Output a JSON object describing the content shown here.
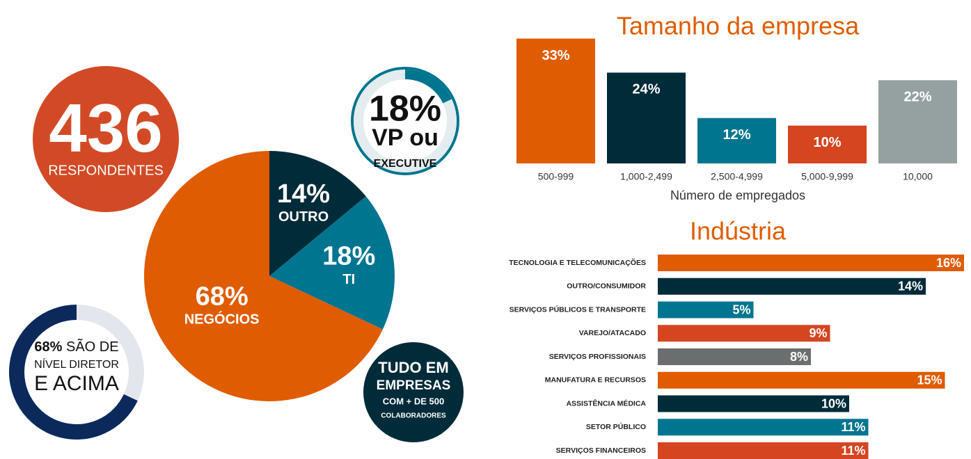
{
  "respondents": {
    "value": 436,
    "label": "RESPONDENTES"
  },
  "note": [
    "TUDO EM",
    "EMPRESAS",
    "COM + DE 500",
    "COLABORADORES"
  ],
  "chart_data": [
    {
      "type": "pie",
      "categories": [
        "OUTRO",
        "TI",
        "NEGÓCIOS"
      ],
      "values": [
        14,
        18,
        68
      ],
      "value_labels": [
        "14%",
        "18%",
        "68%"
      ],
      "colors": [
        "#002b38",
        "#00758f",
        "#e05c00"
      ]
    },
    {
      "type": "donut",
      "values": [
        18
      ],
      "value_labels": [
        "18%"
      ],
      "label": [
        "VP ou",
        "EXECUTIVE"
      ],
      "color": "#00758f",
      "track_color": "#e3ecef"
    },
    {
      "type": "donut",
      "values": [
        68
      ],
      "value_labels": [
        "68%"
      ],
      "label": [
        "SÃO DE",
        "NÍVEL DIRETOR",
        "E ACIMA"
      ],
      "color": "#0b2a5b",
      "track_color": "#e3e6ec"
    },
    {
      "type": "bar",
      "title": "Tamanho da empresa",
      "categories": [
        "500-999",
        "1,000-2,499",
        "2,500-4,999",
        "5,000-9,999",
        "10,000"
      ],
      "values": [
        33,
        24,
        12,
        10,
        22
      ],
      "value_labels": [
        "33%",
        "24%",
        "12%",
        "10%",
        "22%"
      ],
      "colors": [
        "#e05c00",
        "#002b38",
        "#00758f",
        "#d44520",
        "#95a0a0"
      ],
      "xlabel": "Número de empregados"
    },
    {
      "type": "hbar",
      "title": "Indústria",
      "categories": [
        "TECNOLOGIA E TELECOMUNICAÇÕES",
        "OUTRO/CONSUMIDOR",
        "SERVIÇOS PÚBLICOS E TRANSPORTE",
        "VAREJO/ATACADO",
        "SERVIÇOS PROFISSIONAIS",
        "MANUFATURA E RECURSOS",
        "ASSISTÊNCIA MÉDICA",
        "SETOR PÚBLICO",
        "SERVIÇOS FINANCEIROS"
      ],
      "values": [
        16,
        14,
        5,
        9,
        8,
        15,
        10,
        11,
        11
      ],
      "value_labels": [
        "16%",
        "14%",
        "5%",
        "9%",
        "8%",
        "15%",
        "10%",
        "11%",
        "11%"
      ],
      "colors": [
        "#e05c00",
        "#002b38",
        "#00758f",
        "#d44520",
        "#6a6e6e",
        "#e05c00",
        "#002b38",
        "#00758f",
        "#d44520"
      ]
    }
  ]
}
